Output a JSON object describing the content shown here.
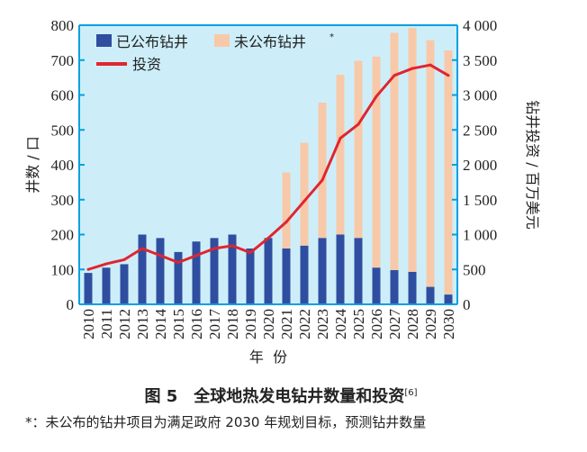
{
  "chart_data": {
    "type": "bar",
    "categories": [
      "2010",
      "2011",
      "2012",
      "2013",
      "2014",
      "2015",
      "2016",
      "2017",
      "2018",
      "2019",
      "2020",
      "2021",
      "2022",
      "2023",
      "2024",
      "2025",
      "2026",
      "2027",
      "2028",
      "2029",
      "2030"
    ],
    "series": [
      {
        "name": "已公布钻井",
        "type": "bar",
        "axis": "left",
        "values": [
          90,
          105,
          115,
          200,
          190,
          150,
          180,
          190,
          200,
          160,
          190,
          160,
          168,
          190,
          200,
          190,
          105,
          98,
          93,
          50,
          28
        ]
      },
      {
        "name": "未公布钻井",
        "legend_mark": "*",
        "type": "stacked-bar",
        "axis": "left",
        "values": [
          0,
          0,
          0,
          0,
          0,
          0,
          0,
          0,
          0,
          0,
          0,
          218,
          295,
          388,
          458,
          508,
          605,
          680,
          699,
          707,
          700
        ]
      },
      {
        "name": "投资",
        "type": "line",
        "axis": "right",
        "values": [
          500,
          580,
          640,
          800,
          700,
          600,
          700,
          800,
          840,
          740,
          950,
          1180,
          1480,
          1780,
          2380,
          2580,
          2980,
          3280,
          3380,
          3430,
          3280
        ]
      }
    ],
    "xlabel": "年  份",
    "ylabel": "井数 / 口",
    "y2label": "钻井投资 / 百万美元",
    "ylim": [
      0,
      800
    ],
    "y2lim": [
      0,
      4000
    ],
    "yticks": [
      "0",
      "100",
      "200",
      "300",
      "400",
      "500",
      "600",
      "700",
      "800"
    ],
    "y2ticks": [
      "0",
      "500",
      "1 000",
      "1 500",
      "2 000",
      "2 500",
      "3 000",
      "3 500",
      "4 000"
    ],
    "legend": "top-left",
    "colors": {
      "published": "#2f4ea0",
      "unpublished": "#f7c9a9",
      "investment": "#e0252f",
      "plot_bg": "#cdeef9",
      "axis": "#00a0e0"
    }
  },
  "caption": {
    "title": "图 5　全球地热发电钻井数量和投资",
    "ref": "[6]"
  },
  "footnote": "*：未公布的钻井项目为满足政府 2030 年规划目标，预测钻井数量"
}
